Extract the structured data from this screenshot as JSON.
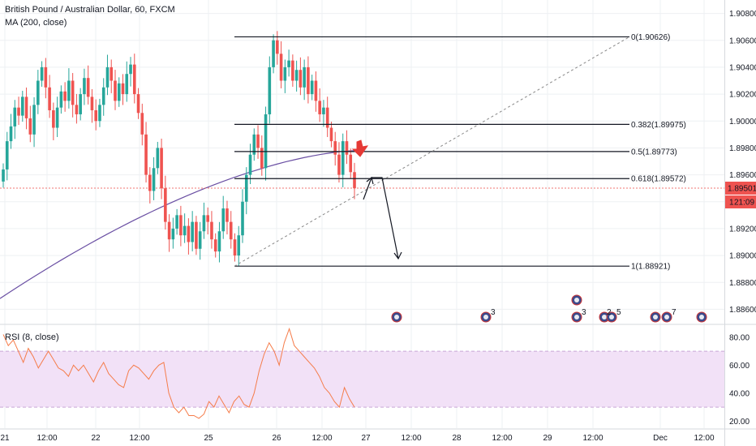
{
  "legend": {
    "symbol": "British Pound / Australian Dollar, 60, FXCM",
    "ma": "MA (200, close)",
    "rsi": "RSI (8, close)"
  },
  "price_scale": {
    "labels": [
      "1.90800",
      "1.90600",
      "1.90400",
      "1.90200",
      "1.90000",
      "1.89800",
      "1.89600",
      "1.89400",
      "1.89200",
      "1.89000",
      "1.88800",
      "1.88600"
    ],
    "current_price": "1.89501",
    "countdown": "21:09",
    "tick_extra": "1"
  },
  "rsi_scale": {
    "labels": [
      "80.00",
      "60.00",
      "40.00",
      "20.00"
    ],
    "upper": 70,
    "lower": 30
  },
  "time_axis": {
    "labels": [
      "21",
      "12:00",
      "22",
      "12:00",
      "25",
      "26",
      "12:00",
      "27",
      "12:00",
      "28",
      "12:00",
      "29",
      "12:00",
      "Dec",
      "12:00"
    ]
  },
  "fib_levels": [
    {
      "label": "0(1.90626)",
      "value": 1.90626
    },
    {
      "label": "0.382(1.89975)",
      "value": 1.89975
    },
    {
      "label": "0.5(1.89773)",
      "value": 1.89773
    },
    {
      "label": "0.618(1.89572)",
      "value": 1.89572
    },
    {
      "label": "1(1.88921)",
      "value": 1.88921
    }
  ],
  "events": {
    "counts": [
      "3",
      "3",
      "2",
      "5",
      "7"
    ]
  },
  "colors": {
    "up": "#26a69a",
    "down": "#ef5350",
    "ma": "#6a4fa3",
    "rsi": "#f57c4a",
    "rsi_band": "#f2e1f7",
    "price_tag": "#ef5350",
    "grid": "#eef0f3"
  },
  "chart_data": {
    "type": "candlestick",
    "title": "British Pound / Australian Dollar, 60, FXCM",
    "ylim": [
      1.885,
      1.909
    ],
    "candles_close": [
      1.8964,
      1.8985,
      1.8996,
      1.901,
      1.9004,
      1.9018,
      1.9002,
      1.899,
      1.9012,
      1.903,
      1.904,
      1.9025,
      1.9008,
      1.8995,
      1.901,
      1.9022,
      1.9015,
      1.903,
      1.9012,
      1.9005,
      1.902,
      1.9032,
      1.9018,
      1.9008,
      1.9,
      1.9012,
      1.9025,
      1.904,
      1.903,
      1.9015,
      1.9028,
      1.902,
      1.9035,
      1.9042,
      1.902,
      1.9006,
      1.899,
      1.896,
      1.8948,
      1.8965,
      1.898,
      1.895,
      1.8925,
      1.8912,
      1.892,
      1.893,
      1.8915,
      1.8922,
      1.891,
      1.8925,
      1.8905,
      1.8918,
      1.893,
      1.8925,
      1.8912,
      1.8903,
      1.8918,
      1.8935,
      1.8925,
      1.8912,
      1.89,
      1.8915,
      1.894,
      1.896,
      1.8975,
      1.899,
      1.898,
      1.8965,
      1.9005,
      1.904,
      1.906,
      1.905,
      1.903,
      1.904,
      1.9045,
      1.903,
      1.9038,
      1.9025,
      1.904,
      1.902,
      1.903,
      1.9015,
      1.9005,
      1.901,
      1.8995,
      1.8985,
      1.8975,
      1.896,
      1.8985,
      1.8975,
      1.8962,
      1.895
    ],
    "ma200": [
      1.8868,
      1.895
    ],
    "rsi": [
      82,
      74,
      78,
      70,
      62,
      72,
      66,
      58,
      64,
      70,
      64,
      58,
      56,
      52,
      60,
      56,
      60,
      54,
      48,
      56,
      62,
      54,
      50,
      46,
      44,
      56,
      60,
      58,
      54,
      50,
      56,
      60,
      62,
      40,
      30,
      26,
      30,
      24,
      24,
      22,
      25,
      34,
      30,
      38,
      32,
      26,
      34,
      38,
      32,
      30,
      40,
      56,
      68,
      76,
      70,
      60,
      76,
      86,
      74,
      70,
      66,
      62,
      58,
      52,
      44,
      40,
      34,
      30,
      44,
      36,
      30
    ]
  }
}
